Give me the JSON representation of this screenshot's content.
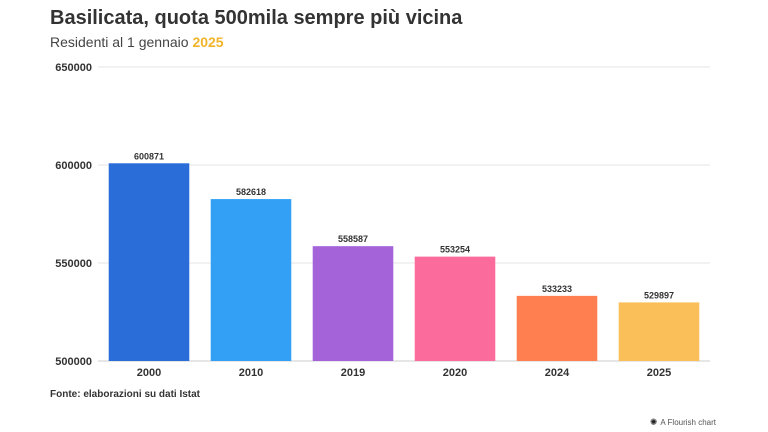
{
  "header": {
    "title": "Basilicata, quota 500mila sempre più vicina",
    "subtitle_prefix": "Residenti al 1 gennaio ",
    "subtitle_highlight": "2025",
    "highlight_color": "#f0b429"
  },
  "footer": {
    "source": "Fonte: elaborazioni su dati Istat",
    "credit": "A Flourish chart",
    "credit_icon": "flourish-logo-icon"
  },
  "chart_data": {
    "type": "bar",
    "title": "Basilicata, quota 500mila sempre più vicina",
    "subtitle": "Residenti al 1 gennaio 2025",
    "categories": [
      "2000",
      "2010",
      "2019",
      "2020",
      "2024",
      "2025"
    ],
    "values": [
      600871,
      582618,
      558587,
      553254,
      533233,
      529897
    ],
    "data_labels": [
      "600871",
      "582618",
      "558587",
      "553254",
      "533233",
      "529897"
    ],
    "colors": [
      "#2a6dd9",
      "#33a0f5",
      "#a463d8",
      "#fb6b9b",
      "#ff7f50",
      "#fbbf5a"
    ],
    "ylim": [
      500000,
      650000
    ],
    "yticks": [
      500000,
      550000,
      600000,
      650000
    ],
    "ytick_labels": [
      "500000",
      "550000",
      "600000",
      "650000"
    ],
    "xlabel": "",
    "ylabel": "",
    "grid": true,
    "legend": "none"
  }
}
